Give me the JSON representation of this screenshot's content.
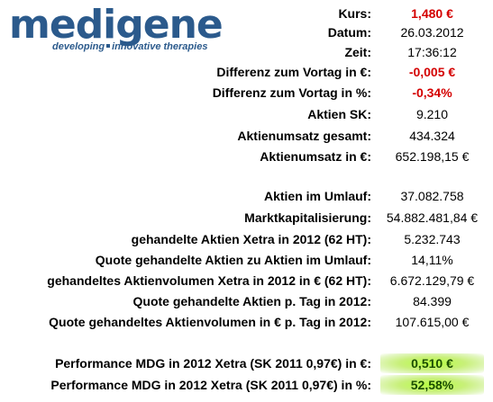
{
  "logo": {
    "word": "medigene",
    "tag_part1": "developing",
    "tag_part2": "innovative therapies",
    "color": "#2b5a8c"
  },
  "rows": [
    {
      "label": "Kurs:",
      "value": "1,480 €",
      "style": "red"
    },
    {
      "label": "Datum:",
      "value": "26.03.2012",
      "style": "plain"
    },
    {
      "label": "Zeit:",
      "value": "17:36:12",
      "style": "plain"
    },
    {
      "label": "Differenz zum Vortag in €:",
      "value": "-0,005 €",
      "style": "red"
    },
    {
      "label": "Differenz zum Vortag in %:",
      "value": "-0,34%",
      "style": "red"
    },
    {
      "label": "Aktien SK:",
      "value": "9.210",
      "style": "plain"
    },
    {
      "label": "Aktienumsatz gesamt:",
      "value": "434.324",
      "style": "plain"
    },
    {
      "label": "Aktienumsatz in €:",
      "value": "652.198,15 €",
      "style": "plain"
    },
    {
      "label": "Aktien im Umlauf:",
      "value": "37.082.758",
      "style": "plain"
    },
    {
      "label": "Marktkapitalisierung:",
      "value": "54.882.481,84 €",
      "style": "plain"
    },
    {
      "label": "gehandelte Aktien Xetra in 2012 (62 HT):",
      "value": "5.232.743",
      "style": "plain"
    },
    {
      "label": "Quote gehandelte Aktien zu Aktien im Umlauf:",
      "value": "14,11%",
      "style": "plain"
    },
    {
      "label": "gehandeltes Aktienvolumen Xetra in 2012 in € (62 HT):",
      "value": "6.672.129,79 €",
      "style": "plain"
    },
    {
      "label": "Quote gehandelte Aktien p. Tag in 2012:",
      "value": "84.399",
      "style": "plain"
    },
    {
      "label": "Quote gehandeltes Aktienvolumen in € p. Tag in 2012:",
      "value": "107.615,00 €",
      "style": "plain"
    },
    {
      "label": "Performance MDG in 2012 Xetra (SK 2011 0,97€) in €:",
      "value": "0,510 €",
      "style": "green"
    },
    {
      "label": "Performance MDG in 2012 Xetra (SK 2011 0,97€) in %:",
      "value": "52,58%",
      "style": "green"
    }
  ],
  "colors": {
    "negative": "#d40000",
    "highlight": "#b6ff3c",
    "brand": "#2b5a8c"
  }
}
